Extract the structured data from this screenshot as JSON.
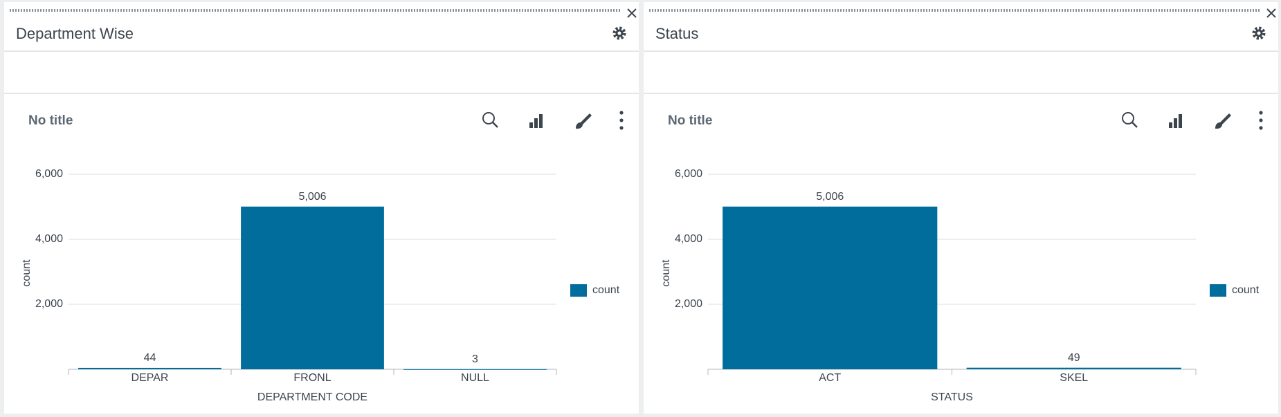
{
  "panels": [
    {
      "title": "Department Wise"
    },
    {
      "title": "Status"
    }
  ],
  "chart_data": [
    {
      "type": "bar",
      "title": "No title",
      "x_label": "DEPARTMENT CODE",
      "y_label": "count",
      "categories": [
        "DEPAR",
        "FRONL",
        "NULL"
      ],
      "series": [
        {
          "name": "count",
          "color": "#006d9c",
          "values": [
            44,
            5006,
            3
          ],
          "value_labels": [
            "44",
            "5,006",
            "3"
          ]
        }
      ],
      "ylim": [
        0,
        6000
      ],
      "yticks": [
        {
          "value": 2000,
          "label": "2,000"
        },
        {
          "value": 4000,
          "label": "4,000"
        },
        {
          "value": 6000,
          "label": "6,000"
        }
      ],
      "grid": true,
      "legend": "right"
    },
    {
      "type": "bar",
      "title": "No title",
      "x_label": "STATUS",
      "y_label": "count",
      "categories": [
        "ACT",
        "SKEL"
      ],
      "series": [
        {
          "name": "count",
          "color": "#006d9c",
          "values": [
            5006,
            49
          ],
          "value_labels": [
            "5,006",
            "49"
          ]
        }
      ],
      "ylim": [
        0,
        6000
      ],
      "yticks": [
        {
          "value": 2000,
          "label": "2,000"
        },
        {
          "value": 4000,
          "label": "4,000"
        },
        {
          "value": 6000,
          "label": "6,000"
        }
      ],
      "grid": true,
      "legend": "right"
    }
  ]
}
